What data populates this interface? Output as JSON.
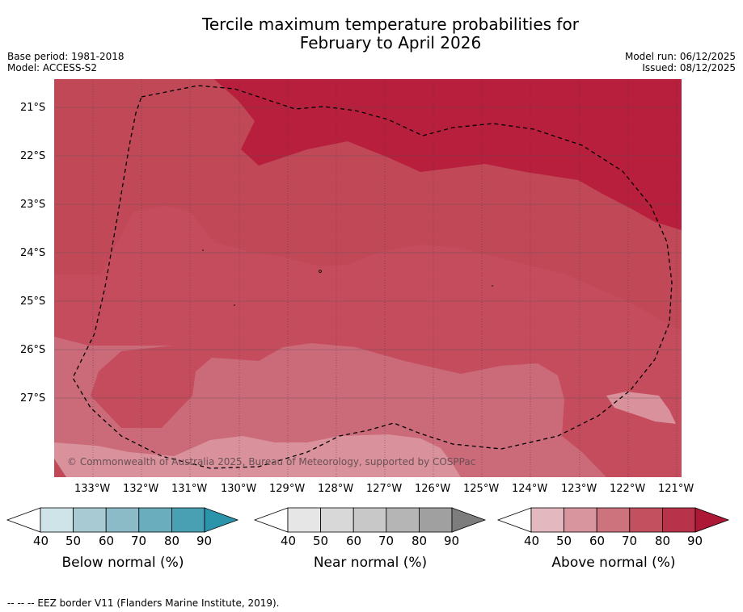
{
  "title_line1": "Tercile maximum temperature probabilities for",
  "title_line2": "February to April 2026",
  "base_period": "Base period: 1981-2018",
  "model": "Model: ACCESS-S2",
  "model_run": "Model run: 06/12/2025",
  "issued": "Issued: 08/12/2025",
  "credit": "© Commonwealth of Australia 2025, Bureau of Meteorology, supported by COSPPac",
  "footer": "--  --  -- EEZ border V11 (Flanders Marine Institute, 2019).",
  "map": {
    "lat_labels": [
      "21°S",
      "22°S",
      "23°S",
      "24°S",
      "25°S",
      "26°S",
      "27°S"
    ],
    "lon_labels": [
      "133°W",
      "132°W",
      "131°W",
      "130°W",
      "129°W",
      "128°W",
      "127°W",
      "126°W",
      "125°W",
      "124°W",
      "123°W",
      "122°W",
      "121°W"
    ],
    "colors": {
      "above_70": "#cb6a78",
      "above_80": "#c04857",
      "above_90": "#b81f3c",
      "above_60": "#d9919c"
    }
  },
  "colorbars": [
    {
      "title": "Below normal (%)",
      "ticks": [
        "40",
        "50",
        "60",
        "70",
        "80",
        "90"
      ],
      "colors": [
        "#ffffff",
        "#cfe4e9",
        "#a8cbd3",
        "#8abbc7",
        "#6aadbd",
        "#4aa0b3",
        "#2b93aa"
      ]
    },
    {
      "title": "Near normal (%)",
      "ticks": [
        "40",
        "50",
        "60",
        "70",
        "80",
        "90"
      ],
      "colors": [
        "#ffffff",
        "#e6e6e6",
        "#d8d8d8",
        "#c8c8c8",
        "#b5b5b5",
        "#a0a0a0",
        "#7d7d7d"
      ]
    },
    {
      "title": "Above normal (%)",
      "ticks": [
        "40",
        "50",
        "60",
        "70",
        "80",
        "90"
      ],
      "colors": [
        "#ffffff",
        "#e3b9bf",
        "#d9959e",
        "#cd737e",
        "#c2505f",
        "#b8334a",
        "#ad1834"
      ]
    }
  ]
}
